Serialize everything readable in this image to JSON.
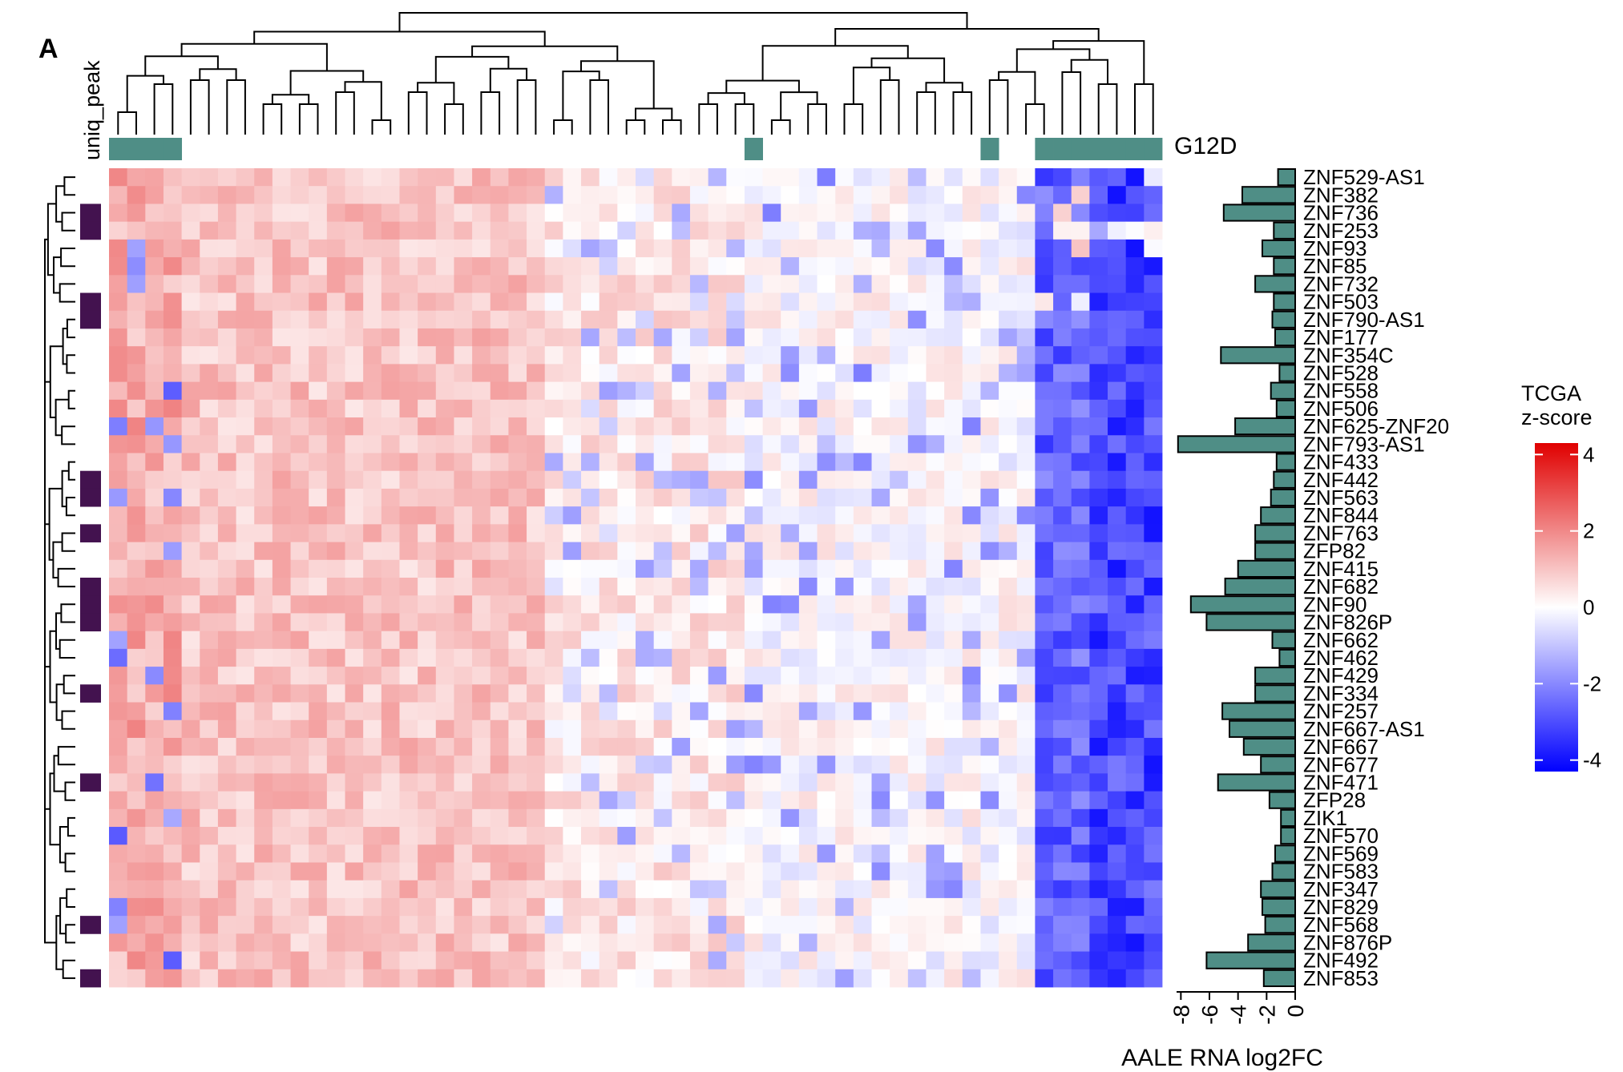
{
  "panel_label": "A",
  "row_annotation_label": "uniq_peak",
  "col_annotation_label": "G12D",
  "colors": {
    "teal": "#4f8e86",
    "dark_purple": "#43124f",
    "heat_high": "#e00000",
    "heat_mid": "#ffffff",
    "heat_low": "#0000ff",
    "bar_fill": "#4f8e86"
  },
  "chart_data": [
    {
      "type": "heatmap",
      "title": "",
      "columns": 58,
      "rows": [
        "ZNF529-AS1",
        "ZNF382",
        "ZNF736",
        "ZNF253",
        "ZNF93",
        "ZNF85",
        "ZNF732",
        "ZNF503",
        "ZNF790-AS1",
        "ZNF177",
        "ZNF354C",
        "ZNF528",
        "ZNF558",
        "ZNF506",
        "ZNF625-ZNF20",
        "ZNF793-AS1",
        "ZNF433",
        "ZNF442",
        "ZNF563",
        "ZNF844",
        "ZNF763",
        "ZFP82",
        "ZNF415",
        "ZNF682",
        "ZNF90",
        "ZNF826P",
        "ZNF662",
        "ZNF462",
        "ZNF429",
        "ZNF334",
        "ZNF257",
        "ZNF667-AS1",
        "ZNF667",
        "ZNF677",
        "ZNF471",
        "ZFP28",
        "ZIK1",
        "ZNF570",
        "ZNF569",
        "ZNF583",
        "ZNF347",
        "ZNF829",
        "ZNF568",
        "ZNF876P",
        "ZNF492",
        "ZNF853"
      ],
      "column_annotation_g12d_columns": [
        0,
        1,
        2,
        3,
        35,
        48,
        51,
        52,
        53,
        54,
        55,
        56,
        57
      ],
      "row_annotation_uniq_peak_rows": [
        2,
        3,
        7,
        8,
        17,
        18,
        20,
        23,
        24,
        25,
        29,
        34,
        42,
        45
      ],
      "legend": {
        "title_line1": "TCGA",
        "title_line2": "z-score",
        "range": [
          -4.3,
          4.3
        ],
        "ticks": [
          4,
          2,
          0,
          -2,
          -4
        ],
        "tick_labels": [
          "4",
          "2",
          "0",
          "-2",
          "-4"
        ]
      }
    },
    {
      "type": "bar",
      "orientation": "horizontal",
      "xlabel": "AALE RNA log2FC",
      "xlim": [
        -8.3,
        0
      ],
      "ticks": [
        -8,
        -6,
        -4,
        -2,
        0
      ],
      "tick_labels": [
        "-8",
        "-6",
        "-4",
        "-2",
        "0"
      ],
      "categories": [
        "ZNF529-AS1",
        "ZNF382",
        "ZNF736",
        "ZNF253",
        "ZNF93",
        "ZNF85",
        "ZNF732",
        "ZNF503",
        "ZNF790-AS1",
        "ZNF177",
        "ZNF354C",
        "ZNF528",
        "ZNF558",
        "ZNF506",
        "ZNF625-ZNF20",
        "ZNF793-AS1",
        "ZNF433",
        "ZNF442",
        "ZNF563",
        "ZNF844",
        "ZNF763",
        "ZFP82",
        "ZNF415",
        "ZNF682",
        "ZNF90",
        "ZNF826P",
        "ZNF662",
        "ZNF462",
        "ZNF429",
        "ZNF334",
        "ZNF257",
        "ZNF667-AS1",
        "ZNF667",
        "ZNF677",
        "ZNF471",
        "ZFP28",
        "ZIK1",
        "ZNF570",
        "ZNF569",
        "ZNF583",
        "ZNF347",
        "ZNF829",
        "ZNF568",
        "ZNF876P",
        "ZNF492",
        "ZNF853"
      ],
      "values": [
        -1.2,
        -3.7,
        -5.0,
        -1.5,
        -2.3,
        -1.5,
        -2.8,
        -1.5,
        -1.6,
        -1.4,
        -5.2,
        -1.1,
        -1.7,
        -1.3,
        -4.2,
        -8.2,
        -1.3,
        -1.5,
        -1.7,
        -2.4,
        -2.8,
        -2.8,
        -4.0,
        -4.9,
        -7.3,
        -6.2,
        -1.6,
        -1.1,
        -2.8,
        -2.8,
        -5.1,
        -4.6,
        -3.6,
        -2.4,
        -5.4,
        -1.8,
        -1.0,
        -1.0,
        -1.4,
        -1.6,
        -2.4,
        -2.3,
        -2.1,
        -3.3,
        -6.2,
        -2.2
      ]
    }
  ]
}
